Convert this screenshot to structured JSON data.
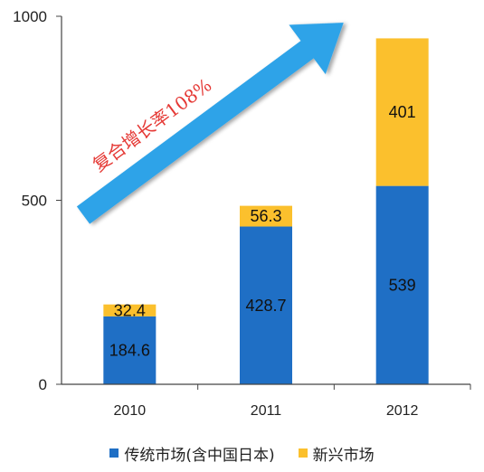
{
  "chart_data": {
    "type": "bar",
    "stacked": true,
    "categories": [
      "2010",
      "2011",
      "2012"
    ],
    "series": [
      {
        "name": "传统市场(含中国日本)",
        "values": [
          184.6,
          428.7,
          539
        ],
        "color": "#1f6fc5"
      },
      {
        "name": "新兴市场",
        "values": [
          32.4,
          56.3,
          401
        ],
        "color": "#fbc02d"
      }
    ],
    "data_labels": [
      [
        "184.6",
        "428.7",
        "539"
      ],
      [
        "32.4",
        "56.3",
        "401"
      ]
    ],
    "ylim": [
      0,
      1000
    ],
    "yticks": [
      0,
      500,
      1000
    ],
    "ytick_labels": [
      "0",
      "500",
      "1000"
    ],
    "grid": false,
    "legend_position": "bottom",
    "annotation": {
      "text": "复合增长率108%",
      "arrow_color": "#2ea3e8",
      "text_color": "#e53935"
    }
  }
}
